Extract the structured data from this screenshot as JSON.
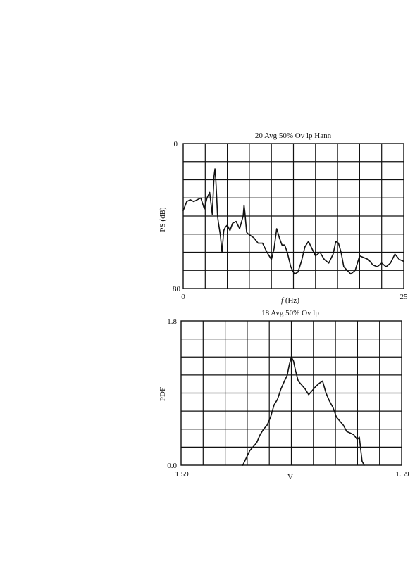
{
  "chart_data": [
    {
      "type": "line",
      "title": "20 Avg 50% Ov lp Hann",
      "xlabel_italic": "f",
      "xlabel_rest": " (Hz)",
      "ylabel": "PS (dB)",
      "xlim": [
        0,
        25
      ],
      "ylim": [
        -80,
        0
      ],
      "x_tick_labels": [
        "0",
        "25"
      ],
      "y_tick_labels": [
        "0",
        "-80"
      ],
      "grid": true,
      "grid_divisions": {
        "x": 10,
        "y": 8
      },
      "series": [
        {
          "x": [
            0,
            0.4,
            0.8,
            1.2,
            1.6,
            2.0,
            2.4,
            2.7,
            3.0,
            3.3,
            3.5,
            3.6,
            3.7,
            3.8,
            3.9,
            4.0,
            4.2,
            4.4,
            4.6,
            4.8,
            5.0,
            5.3,
            5.6,
            6.0,
            6.4,
            6.8,
            6.9,
            7.0,
            7.1,
            7.2,
            7.4,
            7.7,
            8.0,
            8.5,
            9.0,
            9.5,
            10.0,
            10.3,
            10.6,
            10.9,
            11.2,
            11.5,
            11.8,
            12.2,
            12.6,
            13.0,
            13.4,
            13.8,
            14.2,
            14.6,
            15.0,
            15.5,
            16.0,
            16.5,
            17.0,
            17.3,
            17.6,
            17.9,
            18.2,
            18.6,
            19.0,
            19.5,
            20.0,
            20.5,
            21.0,
            21.5,
            22.0,
            22.5,
            23.0,
            23.5,
            24.0,
            24.5,
            25.0
          ],
          "y": [
            -37,
            -32,
            -31,
            -32,
            -31,
            -30,
            -36,
            -30,
            -27,
            -39,
            -18,
            -14,
            -20,
            -30,
            -40,
            -44,
            -50,
            -60,
            -48,
            -46,
            -45,
            -48,
            -44,
            -43,
            -47,
            -40,
            -34,
            -38,
            -44,
            -49,
            -50,
            -51,
            -52,
            -55,
            -55,
            -60,
            -64,
            -58,
            -47,
            -52,
            -56,
            -56,
            -60,
            -68,
            -72,
            -71,
            -65,
            -57,
            -54,
            -58,
            -62,
            -60,
            -64,
            -66,
            -61,
            -54,
            -55,
            -60,
            -68,
            -70,
            -72,
            -70,
            -62,
            -63,
            -64,
            -67,
            -68,
            -66,
            -68,
            -66,
            -61,
            -64,
            -65
          ]
        }
      ]
    },
    {
      "type": "line",
      "title": "18 Avg 50% Ov lp",
      "xlabel": "V",
      "ylabel": "PDF",
      "xlim": [
        -1.59,
        1.59
      ],
      "ylim": [
        0,
        1.8
      ],
      "x_tick_labels": [
        "-1.59",
        "1.59"
      ],
      "y_tick_labels": [
        "1.8",
        "0.0"
      ],
      "grid": true,
      "grid_divisions": {
        "x": 10,
        "y": 8
      },
      "series": [
        {
          "x": [
            -0.7,
            -0.6,
            -0.5,
            -0.45,
            -0.4,
            -0.35,
            -0.3,
            -0.25,
            -0.2,
            -0.15,
            -0.1,
            -0.06,
            -0.03,
            0.0,
            0.03,
            0.06,
            0.1,
            0.15,
            0.2,
            0.25,
            0.3,
            0.35,
            0.4,
            0.45,
            0.5,
            0.55,
            0.6,
            0.65,
            0.7,
            0.75,
            0.8,
            0.85,
            0.9,
            0.95,
            0.98,
            1.0,
            1.02,
            1.05
          ],
          "y": [
            0.0,
            0.18,
            0.28,
            0.38,
            0.45,
            0.5,
            0.6,
            0.75,
            0.82,
            0.95,
            1.05,
            1.12,
            1.25,
            1.35,
            1.3,
            1.18,
            1.05,
            1.0,
            0.95,
            0.88,
            0.93,
            0.98,
            1.02,
            1.05,
            0.9,
            0.8,
            0.72,
            0.6,
            0.55,
            0.5,
            0.42,
            0.4,
            0.38,
            0.32,
            0.35,
            0.2,
            0.05,
            0.0
          ]
        }
      ]
    }
  ]
}
